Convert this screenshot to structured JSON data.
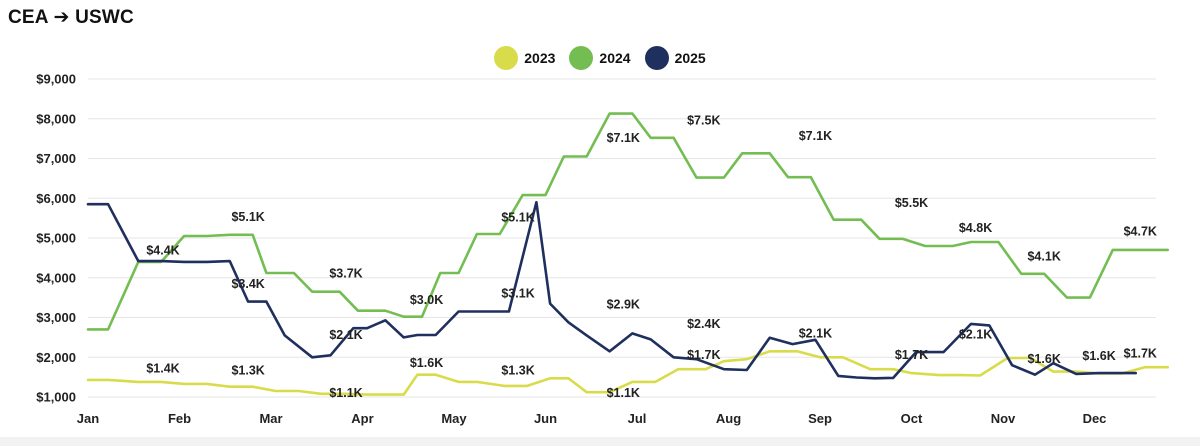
{
  "title": "CEA ➔ USWC",
  "legend": [
    {
      "name": "2023",
      "color": "#d9dc4a"
    },
    {
      "name": "2024",
      "color": "#74bd52"
    },
    {
      "name": "2025",
      "color": "#1f2f5e"
    }
  ],
  "chart_data": {
    "type": "line",
    "title": "CEA ➔ USWC",
    "xlabel": "",
    "ylabel": "",
    "x_ticks": [
      "Jan",
      "Feb",
      "Mar",
      "Apr",
      "May",
      "Jun",
      "Jul",
      "Aug",
      "Sep",
      "Oct",
      "Nov",
      "Dec"
    ],
    "y_ticks": [
      "$1,000",
      "$2,000",
      "$3,000",
      "$4,000",
      "$5,000",
      "$6,000",
      "$7,000",
      "$8,000",
      "$9,000"
    ],
    "ylim": [
      1000,
      9000
    ],
    "xlim": [
      0,
      11.8
    ],
    "grid": true,
    "legend_position": "top-center",
    "series": [
      {
        "name": "2023",
        "color": "#d9dc4a",
        "x": [
          0,
          0.22,
          0.55,
          0.8,
          1.05,
          1.3,
          1.55,
          1.8,
          2.05,
          2.3,
          2.55,
          2.8,
          3.05,
          3.25,
          3.45,
          3.6,
          3.8,
          4.05,
          4.25,
          4.55,
          4.8,
          5.05,
          5.25,
          5.45,
          5.7,
          5.95,
          6.2,
          6.45,
          6.75,
          6.95,
          7.2,
          7.45,
          7.75,
          8.0,
          8.25,
          8.55,
          8.8,
          9.0,
          9.3,
          9.55,
          9.75,
          10.05,
          10.3,
          10.55,
          10.8,
          11.05,
          11.3,
          11.55,
          11.8
        ],
        "values": [
          1430,
          1430,
          1380,
          1380,
          1330,
          1330,
          1260,
          1260,
          1150,
          1150,
          1080,
          1080,
          1060,
          1060,
          1060,
          1560,
          1560,
          1380,
          1380,
          1280,
          1280,
          1470,
          1470,
          1120,
          1120,
          1380,
          1380,
          1700,
          1700,
          1900,
          1950,
          2150,
          2150,
          2000,
          2000,
          1700,
          1700,
          1600,
          1550,
          1550,
          1540,
          1980,
          1980,
          1640,
          1640,
          1590,
          1590,
          1750,
          1750
        ]
      },
      {
        "name": "2024",
        "color": "#74bd52",
        "x": [
          0,
          0.22,
          0.55,
          0.8,
          1.05,
          1.3,
          1.55,
          1.8,
          1.95,
          2.25,
          2.45,
          2.75,
          2.95,
          3.25,
          3.45,
          3.65,
          3.85,
          4.05,
          4.25,
          4.5,
          4.75,
          5.0,
          5.2,
          5.45,
          5.7,
          5.95,
          6.15,
          6.4,
          6.65,
          6.95,
          7.15,
          7.45,
          7.65,
          7.9,
          8.15,
          8.45,
          8.65,
          8.9,
          9.15,
          9.45,
          9.65,
          9.95,
          10.2,
          10.45,
          10.7,
          10.95,
          11.2,
          11.45,
          11.55,
          11.8
        ],
        "values": [
          2700,
          2700,
          4400,
          4400,
          5050,
          5050,
          5080,
          5080,
          4120,
          4120,
          3650,
          3650,
          3170,
          3170,
          3020,
          3020,
          4120,
          4120,
          5100,
          5100,
          6080,
          6080,
          7050,
          7050,
          8130,
          8130,
          7520,
          7520,
          6520,
          6520,
          7130,
          7130,
          6530,
          6530,
          5460,
          5460,
          4980,
          4980,
          4800,
          4800,
          4900,
          4900,
          4100,
          4100,
          3500,
          3500,
          4700,
          4700,
          4700,
          4700
        ]
      },
      {
        "name": "2025",
        "color": "#1f2f5e",
        "x": [
          0,
          0.22,
          0.55,
          0.8,
          1.05,
          1.3,
          1.55,
          1.75,
          1.95,
          2.15,
          2.45,
          2.65,
          2.9,
          3.05,
          3.25,
          3.45,
          3.6,
          3.8,
          4.05,
          4.35,
          4.6,
          4.9,
          5.05,
          5.25,
          5.45,
          5.7,
          5.95,
          6.15,
          6.4,
          6.65,
          6.95,
          7.2,
          7.45,
          7.7,
          7.95,
          8.2,
          8.4,
          8.6,
          8.8,
          9.05,
          9.35,
          9.65,
          9.85,
          10.1,
          10.35,
          10.55,
          10.8,
          11.05,
          11.25,
          11.45
        ],
        "values": [
          5850,
          5850,
          4420,
          4420,
          4400,
          4400,
          4420,
          3400,
          3400,
          2550,
          2000,
          2050,
          2730,
          2730,
          2930,
          2500,
          2560,
          2560,
          3150,
          3150,
          3150,
          5900,
          3350,
          2880,
          2550,
          2150,
          2600,
          2450,
          2000,
          1950,
          1700,
          1680,
          2490,
          2330,
          2440,
          1530,
          1490,
          1470,
          1480,
          2130,
          2130,
          2840,
          2800,
          1800,
          1560,
          1850,
          1580,
          1600,
          1600,
          1600
        ]
      }
    ],
    "data_labels": [
      {
        "text": "$1.4K",
        "x": 0.82,
        "y": 1620
      },
      {
        "text": "$1.3K",
        "x": 1.75,
        "y": 1560
      },
      {
        "text": "$1.1K",
        "x": 2.82,
        "y": 1000
      },
      {
        "text": "$1.6K",
        "x": 3.7,
        "y": 1760
      },
      {
        "text": "$1.3K",
        "x": 4.7,
        "y": 1560
      },
      {
        "text": "$1.1K",
        "x": 5.85,
        "y": 1000
      },
      {
        "text": "$1.7K",
        "x": 6.73,
        "y": 1950
      },
      {
        "text": "$2.1K",
        "x": 7.95,
        "y": 2500
      },
      {
        "text": "$1.7K",
        "x": 9.0,
        "y": 1950
      },
      {
        "text": "$1.6K",
        "x": 10.45,
        "y": 1850
      },
      {
        "text": "$1.7K",
        "x": 11.5,
        "y": 1990
      },
      {
        "text": "$4.4K",
        "x": 0.82,
        "y": 4580
      },
      {
        "text": "$5.1K",
        "x": 1.75,
        "y": 5430
      },
      {
        "text": "$3.7K",
        "x": 2.82,
        "y": 4010
      },
      {
        "text": "$3.0K",
        "x": 3.7,
        "y": 3340
      },
      {
        "text": "$5.1K",
        "x": 4.7,
        "y": 5420
      },
      {
        "text": "$7.1K",
        "x": 5.85,
        "y": 7410
      },
      {
        "text": "$7.5K",
        "x": 6.73,
        "y": 7860
      },
      {
        "text": "$7.1K",
        "x": 7.95,
        "y": 7460
      },
      {
        "text": "$5.5K",
        "x": 9.0,
        "y": 5780
      },
      {
        "text": "$4.8K",
        "x": 9.7,
        "y": 5150
      },
      {
        "text": "$4.1K",
        "x": 10.45,
        "y": 4430
      },
      {
        "text": "$4.7K",
        "x": 11.5,
        "y": 5060
      },
      {
        "text": "$3.4K",
        "x": 1.75,
        "y": 3740
      },
      {
        "text": "$2.1K",
        "x": 2.82,
        "y": 2460
      },
      {
        "text": "$3.1K",
        "x": 4.7,
        "y": 3500
      },
      {
        "text": "$2.9K",
        "x": 5.85,
        "y": 3230
      },
      {
        "text": "$2.4K",
        "x": 6.73,
        "y": 2740
      },
      {
        "text": "$2.1K",
        "x": 9.7,
        "y": 2470
      },
      {
        "text": "$1.6K",
        "x": 11.05,
        "y": 1930
      }
    ]
  }
}
